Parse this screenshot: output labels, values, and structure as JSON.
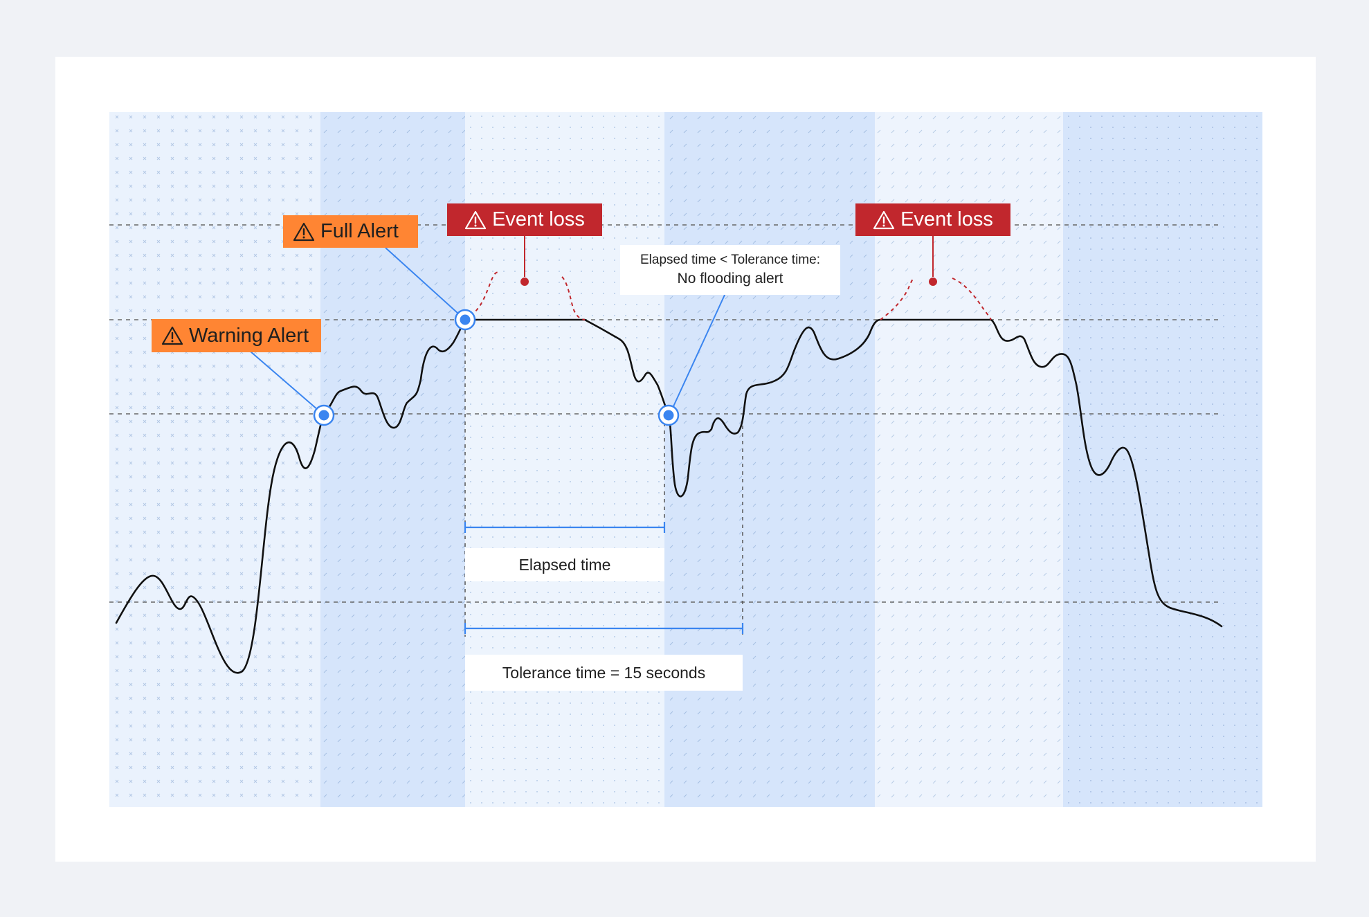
{
  "labels": {
    "warning_alert": "Warning Alert",
    "full_alert": "Full Alert",
    "event_loss_1": "Event loss",
    "event_loss_2": "Event loss",
    "elapsed_note_line1": "Elapsed time < Tolerance time:",
    "elapsed_note_line2": "No flooding alert",
    "elapsed_time": "Elapsed time",
    "tolerance_time": "Tolerance time = 15 seconds"
  },
  "icons": {
    "alert_icon": "warning-triangle-icon",
    "trigger_marker": "ringed-dot-icon",
    "lost_event": "red-dot-icon"
  },
  "colors": {
    "page_bg": "#f0f2f6",
    "card_bg": "#ffffff",
    "band_light": "#eaf2fd",
    "band_dark": "#d6e5fb",
    "warning_orange": "#ff8533",
    "event_loss_red": "#c1272d",
    "marker_blue": "#3a85f0",
    "signal_line": "#111111",
    "threshold_line": "#666666"
  }
}
